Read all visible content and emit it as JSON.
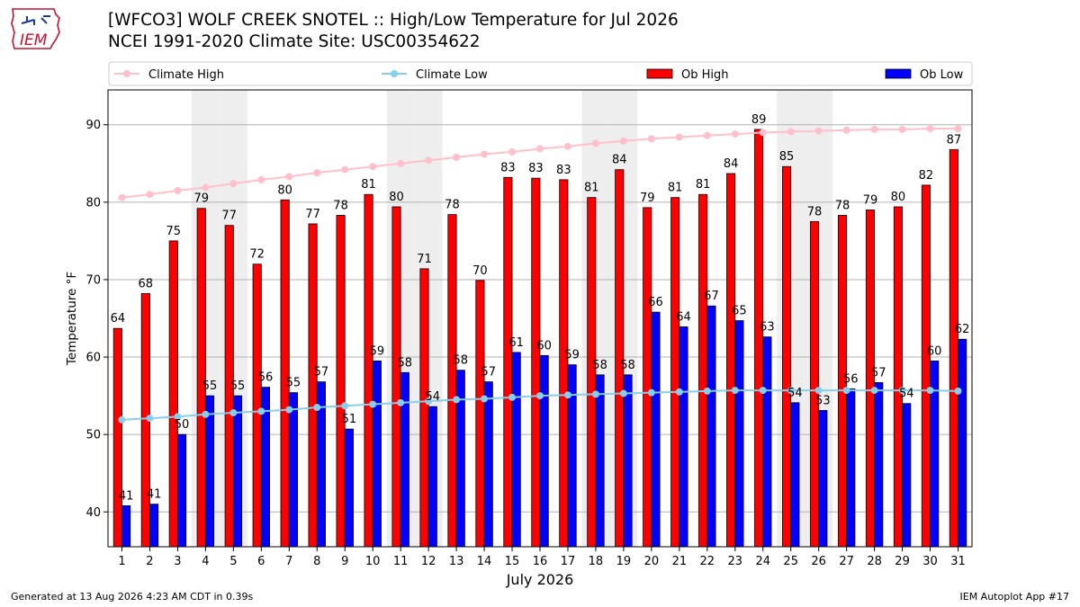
{
  "logo": {
    "text": "IEM"
  },
  "title_line1": "[WFCO3] WOLF CREEK SNOTEL :: High/Low Temperature for Jul 2026",
  "title_line2": "NCEI 1991-2020 Climate Site: USC00354622",
  "footer_left": "Generated at 13 Aug 2026 4:23 AM CDT in 0.39s",
  "footer_right": "IEM Autoplot App #17",
  "colors": {
    "climate_high": "#ffc0cb",
    "climate_low": "#87ceeb",
    "ob_high": "#ff0000",
    "ob_low": "#0000ff",
    "weekend_band": "#eeeeee",
    "grid": "#b0b0b0"
  },
  "chart_data": {
    "type": "bar",
    "xlabel": "July 2026",
    "ylabel": "Temperature °F",
    "ylim": [
      35.5,
      94.5
    ],
    "yticks": [
      40,
      50,
      60,
      70,
      80,
      90
    ],
    "grid": "horizontal",
    "legend_position": "top",
    "categories": [
      "1",
      "2",
      "3",
      "4",
      "5",
      "6",
      "7",
      "8",
      "9",
      "10",
      "11",
      "12",
      "13",
      "14",
      "15",
      "16",
      "17",
      "18",
      "19",
      "20",
      "21",
      "22",
      "23",
      "24",
      "25",
      "26",
      "27",
      "28",
      "29",
      "30",
      "31"
    ],
    "shaded_days": [
      4,
      5,
      11,
      12,
      18,
      19,
      25,
      26
    ],
    "series": [
      {
        "name": "Climate High",
        "kind": "line",
        "values": [
          80.6,
          81.0,
          81.5,
          81.9,
          82.4,
          82.9,
          83.3,
          83.8,
          84.2,
          84.6,
          85.0,
          85.4,
          85.8,
          86.2,
          86.5,
          86.9,
          87.2,
          87.6,
          87.9,
          88.2,
          88.4,
          88.6,
          88.8,
          89.0,
          89.1,
          89.2,
          89.3,
          89.4,
          89.4,
          89.5,
          89.5
        ]
      },
      {
        "name": "Climate Low",
        "kind": "line",
        "values": [
          51.9,
          52.1,
          52.3,
          52.6,
          52.8,
          53.0,
          53.2,
          53.5,
          53.7,
          53.9,
          54.1,
          54.3,
          54.5,
          54.6,
          54.8,
          55.0,
          55.1,
          55.2,
          55.3,
          55.4,
          55.5,
          55.6,
          55.7,
          55.7,
          55.7,
          55.7,
          55.7,
          55.7,
          55.7,
          55.7,
          55.6
        ]
      },
      {
        "name": "Ob High",
        "kind": "bar",
        "values": [
          64,
          68,
          75,
          79,
          77,
          72,
          80,
          77,
          78,
          81,
          80,
          71,
          78,
          70,
          83,
          83,
          83,
          81,
          84,
          79,
          81,
          81,
          84,
          89,
          85,
          78,
          78,
          79,
          80,
          82,
          87
        ],
        "bar_values": [
          63.7,
          68.2,
          75.0,
          79.2,
          77.0,
          72.0,
          80.3,
          77.2,
          78.3,
          81.0,
          79.4,
          71.4,
          78.4,
          69.9,
          83.2,
          83.1,
          82.9,
          80.6,
          84.2,
          79.3,
          80.6,
          81.0,
          83.7,
          89.4,
          84.6,
          77.5,
          78.3,
          79.0,
          79.4,
          82.2,
          86.8
        ]
      },
      {
        "name": "Ob Low",
        "kind": "bar",
        "values": [
          41,
          41,
          50,
          55,
          55,
          56,
          55,
          57,
          51,
          59,
          58,
          54,
          58,
          57,
          61,
          60,
          59,
          58,
          58,
          66,
          64,
          67,
          65,
          63,
          54,
          53,
          56,
          57,
          54,
          60,
          62
        ],
        "bar_values": [
          40.8,
          41.0,
          50.0,
          55.0,
          55.0,
          56.1,
          55.4,
          56.8,
          50.7,
          59.5,
          58.0,
          53.6,
          58.3,
          56.8,
          60.6,
          60.2,
          59.0,
          57.7,
          57.7,
          65.8,
          63.9,
          66.6,
          64.7,
          62.6,
          54.1,
          53.1,
          55.9,
          56.7,
          54.0,
          59.5,
          62.3
        ]
      }
    ]
  }
}
